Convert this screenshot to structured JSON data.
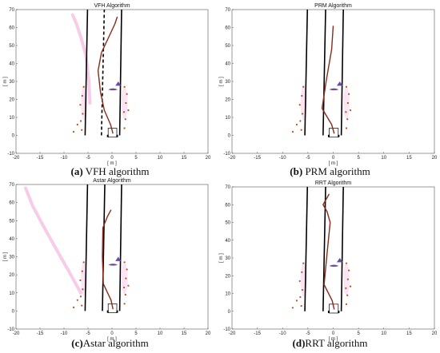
{
  "colors": {
    "lane": "#000000",
    "path": "#8b2a1a",
    "envelope": "#f6c6e6",
    "obstacle": "#b3531f",
    "target": "#6b4aa0"
  },
  "chart_data": [
    {
      "id": "a",
      "type": "line",
      "title": "VFH Algorithm",
      "caption_letter": "(a)",
      "caption_text": " VFH algorithm",
      "xlabel": "[ m ]",
      "ylabel": "[ m ]",
      "xlim": [
        -20,
        20
      ],
      "ylim": [
        -10,
        70
      ],
      "xticks": [
        -20,
        -15,
        -10,
        -5,
        0,
        5,
        10,
        15,
        20
      ],
      "yticks": [
        -10,
        0,
        10,
        20,
        30,
        40,
        50,
        60,
        70
      ],
      "lanes": [
        {
          "x": [
            -5.6,
            -5.1
          ],
          "y": [
            0,
            70
          ],
          "style": "solid"
        },
        {
          "x": [
            -2.2,
            -1.6
          ],
          "y": [
            0,
            70
          ],
          "style": "dashed"
        },
        {
          "x": [
            1.6,
            2.0
          ],
          "y": [
            0,
            70
          ],
          "style": "solid"
        }
      ],
      "path": {
        "x": [
          0.2,
          -0.3,
          -1.6,
          -2.4,
          -2.9,
          -2.2,
          -0.8,
          0.6,
          1.1
        ],
        "y": [
          1,
          6,
          14,
          24,
          36,
          46,
          54,
          62,
          66
        ]
      },
      "envelope": {
        "x": [
          -4.6,
          -4.8,
          -5.4,
          -6.4,
          -7.4,
          -8.2
        ],
        "y": [
          18,
          30,
          44,
          54,
          62,
          67
        ]
      }
    },
    {
      "id": "b",
      "type": "line",
      "title": "PRM Algorithm",
      "caption_letter": "(b)",
      "caption_text": " PRM algorithm",
      "xlabel": "[ m ]",
      "ylabel": "[ m ]",
      "xlim": [
        -20,
        20
      ],
      "ylim": [
        -10,
        70
      ],
      "xticks": [
        -20,
        -15,
        -10,
        -5,
        0,
        5,
        10,
        15,
        20
      ],
      "yticks": [
        -10,
        0,
        10,
        20,
        30,
        40,
        50,
        60,
        70
      ],
      "lanes": [
        {
          "x": [
            -5.6,
            -5.1
          ],
          "y": [
            0,
            70
          ],
          "style": "solid"
        },
        {
          "x": [
            -2.0,
            -1.5
          ],
          "y": [
            0,
            70
          ],
          "style": "solid"
        },
        {
          "x": [
            1.6,
            2.0
          ],
          "y": [
            0,
            70
          ],
          "style": "solid"
        }
      ],
      "path": {
        "x": [
          0.2,
          -0.3,
          -2.2,
          -1.4,
          -0.3,
          0.0
        ],
        "y": [
          1,
          6,
          15,
          30,
          48,
          61
        ]
      },
      "envelope": null
    },
    {
      "id": "c",
      "type": "line",
      "title": "Astar Algorithm",
      "caption_letter": "(c)",
      "caption_text": "Astar algorithm",
      "xlabel": "[ m ]",
      "ylabel": "[ m ]",
      "xlim": [
        -20,
        20
      ],
      "ylim": [
        -10,
        70
      ],
      "xticks": [
        -20,
        -15,
        -10,
        -5,
        0,
        5,
        10,
        15,
        20
      ],
      "yticks": [
        -10,
        0,
        10,
        20,
        30,
        40,
        50,
        60,
        70
      ],
      "lanes": [
        {
          "x": [
            -5.6,
            -5.1
          ],
          "y": [
            0,
            70
          ],
          "style": "solid"
        },
        {
          "x": [
            -2.0,
            -1.5
          ],
          "y": [
            0,
            70
          ],
          "style": "solid"
        },
        {
          "x": [
            1.6,
            2.0
          ],
          "y": [
            0,
            70
          ],
          "style": "solid"
        }
      ],
      "path": {
        "x": [
          0.2,
          -0.2,
          -1.8,
          -2.0,
          -1.9,
          -1.0,
          -0.2
        ],
        "y": [
          1,
          6,
          15,
          30,
          46,
          52,
          56
        ]
      },
      "envelope": {
        "x": [
          -6.5,
          -9.0,
          -12.0,
          -14.5,
          -16.5,
          -18.0
        ],
        "y": [
          10,
          22,
          36,
          48,
          58,
          68
        ]
      }
    },
    {
      "id": "d",
      "type": "line",
      "title": "RRT Algorithm",
      "caption_letter": "(d)",
      "caption_text": "RRT algorithm",
      "xlabel": "[ m ]",
      "ylabel": "[ m ]",
      "xlim": [
        -20,
        20
      ],
      "ylim": [
        -10,
        70
      ],
      "xticks": [
        -20,
        -15,
        -10,
        -5,
        0,
        5,
        10,
        15,
        20
      ],
      "yticks": [
        -10,
        0,
        10,
        20,
        30,
        40,
        50,
        60,
        70
      ],
      "lanes": [
        {
          "x": [
            -5.6,
            -5.1
          ],
          "y": [
            0,
            70
          ],
          "style": "solid"
        },
        {
          "x": [
            -2.0,
            -1.5
          ],
          "y": [
            0,
            70
          ],
          "style": "solid"
        },
        {
          "x": [
            1.6,
            2.0
          ],
          "y": [
            0,
            70
          ],
          "style": "solid"
        }
      ],
      "path": {
        "x": [
          0.2,
          -0.2,
          -1.8,
          -1.3,
          -0.6,
          -1.2,
          -2.0,
          -0.8
        ],
        "y": [
          1,
          6,
          15,
          30,
          50,
          56,
          60,
          66
        ]
      },
      "envelope": null
    }
  ]
}
